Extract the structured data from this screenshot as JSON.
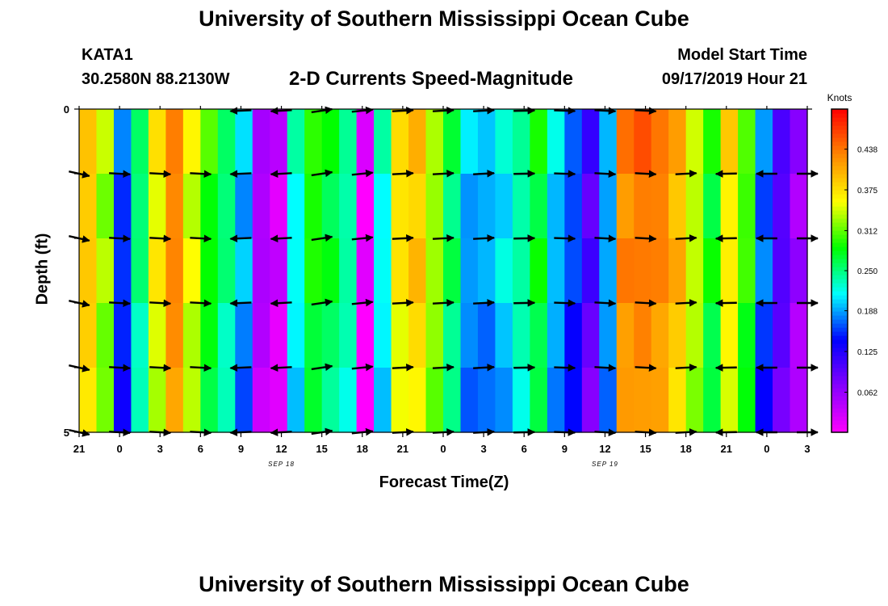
{
  "header": {
    "title": "University of Southern Mississippi Ocean Cube",
    "station_id": "KATA1",
    "station_coords": "30.2580N 88.2130W",
    "plot_title": "2-D Currents Speed-Magnitude",
    "model_start_label": "Model Start Time",
    "model_start_value": "09/17/2019 Hour 21",
    "footer_title": "University of Southern Mississippi Ocean Cube"
  },
  "chart_data": {
    "type": "heatmap",
    "title": "2-D Currents Speed-Magnitude",
    "xlabel": "Forecast Time(Z)",
    "ylabel": "Depth (ft)",
    "ylim": [
      0,
      5
    ],
    "y_tick_labels": [
      "0",
      "5"
    ],
    "x_tick_labels": [
      "21",
      "0",
      "3",
      "6",
      "9",
      "12",
      "15",
      "18",
      "21",
      "0",
      "3",
      "6",
      "9",
      "12",
      "15",
      "18",
      "21",
      "0",
      "3"
    ],
    "date_labels": [
      {
        "text": "SEP 18",
        "at_tick": 5
      },
      {
        "text": "SEP 19",
        "at_tick": 13
      }
    ],
    "hours_per_tick": 3,
    "depth_levels": [
      0,
      1,
      2,
      3,
      4,
      5
    ],
    "speed_profile_knots": [
      0.39,
      0.33,
      0.16,
      0.25,
      0.36,
      0.43,
      0.35,
      0.29,
      0.25,
      0.19,
      0.05,
      0.03,
      0.22,
      0.29,
      0.27,
      0.24,
      0.01,
      0.22,
      0.37,
      0.39,
      0.33,
      0.26,
      0.19,
      0.19,
      0.21,
      0.24,
      0.28,
      0.2,
      0.16,
      0.1,
      0.19,
      0.43,
      0.44,
      0.43,
      0.4,
      0.34,
      0.28,
      0.37,
      0.3,
      0.17,
      0.1,
      0.06
    ],
    "arrow_times_hr": [
      0,
      3,
      6,
      9,
      12,
      15,
      18,
      21,
      24,
      27,
      30,
      33,
      36,
      39,
      42,
      45,
      48,
      51,
      54
    ],
    "colorbar": {
      "title": "Knots",
      "tick_labels": [
        "0.062",
        "0.125",
        "0.188",
        "0.250",
        "0.312",
        "0.375",
        "0.438"
      ],
      "tick_values": [
        0.062,
        0.125,
        0.188,
        0.25,
        0.312,
        0.375,
        0.438
      ],
      "range": [
        0,
        0.5
      ],
      "colors": [
        "#ff00ff",
        "#8800ff",
        "#0000ff",
        "#00ffff",
        "#00ff00",
        "#ffff00",
        "#ff8800",
        "#ff0000"
      ]
    }
  }
}
